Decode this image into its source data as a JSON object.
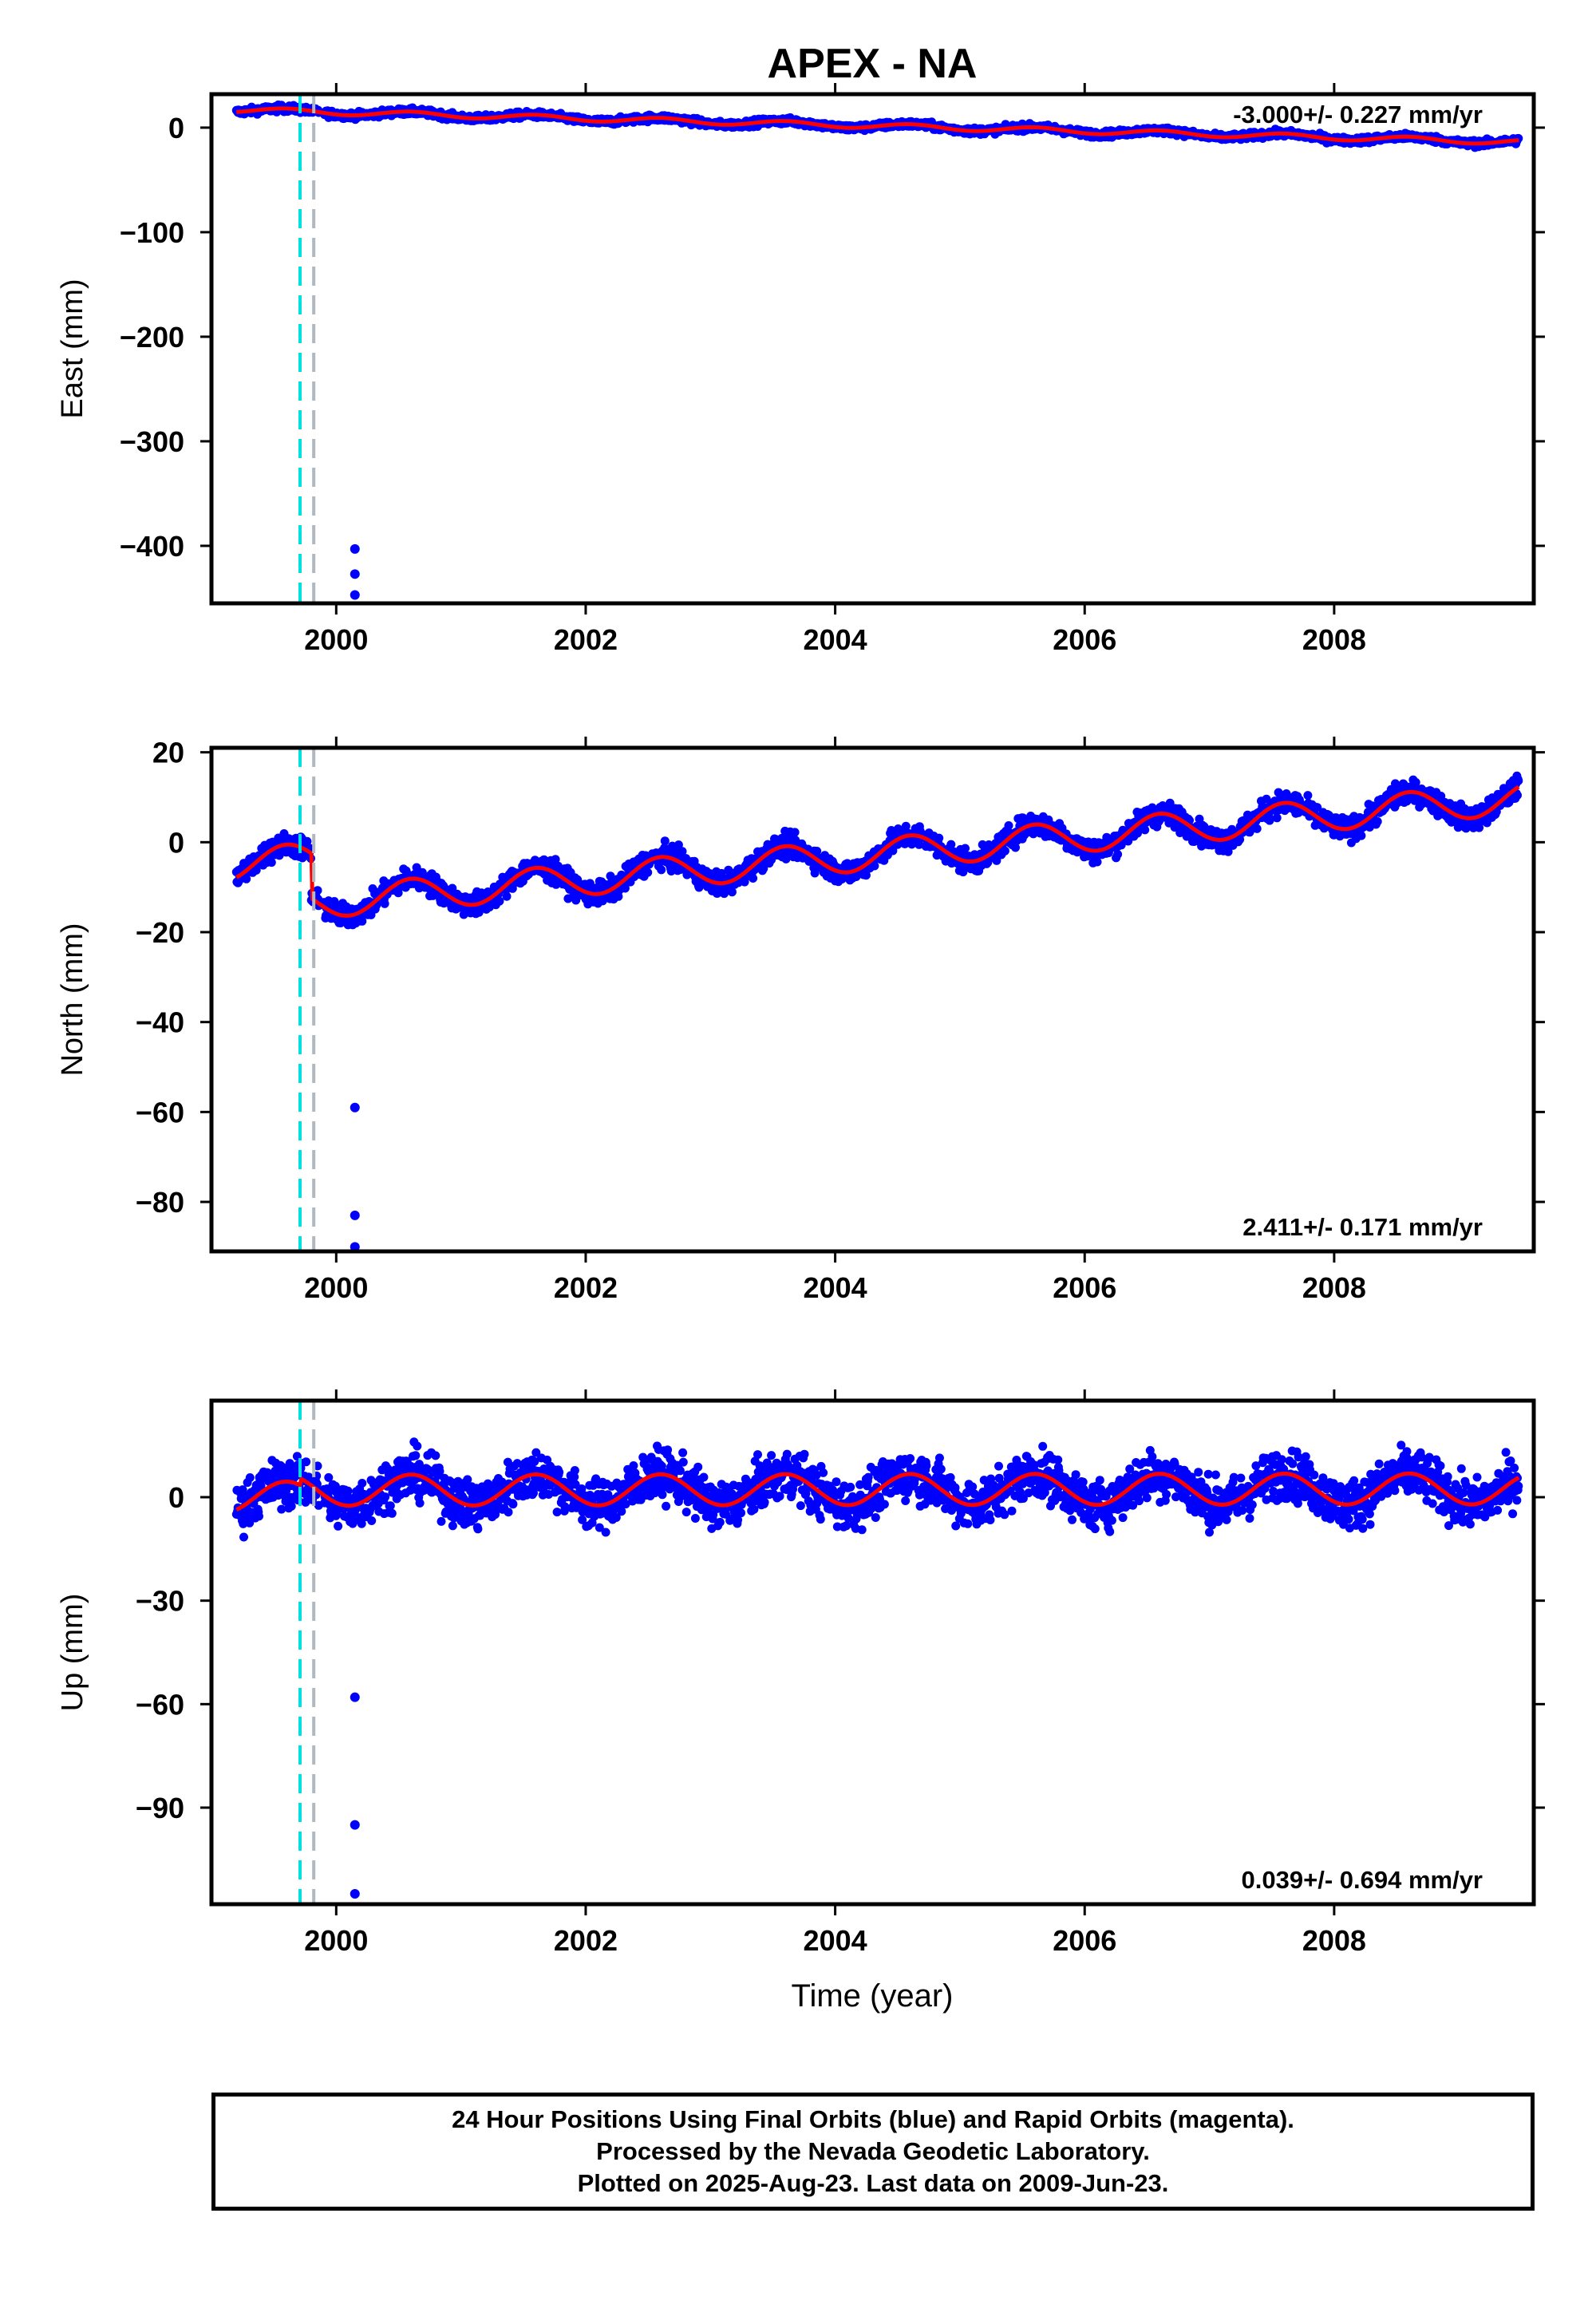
{
  "chart_data": [
    {
      "type": "scatter",
      "panel": "east",
      "title": "APEX - NA",
      "ylabel": "East (mm)",
      "xlabel": "",
      "xlim": [
        1999.0,
        2009.6
      ],
      "ylim": [
        -455,
        32
      ],
      "xticks": [
        2000,
        2002,
        2004,
        2006,
        2008
      ],
      "yticks": [
        0,
        -100,
        -200,
        -300,
        -400
      ],
      "rate_label": "-3.000+/- 0.227 mm/yr",
      "trend": {
        "start": 17,
        "rate": -3.0,
        "amplitude": 2.5,
        "offsets": []
      },
      "scatter_sigma": 2.2,
      "outliers": [
        [
          2000.15,
          -403
        ],
        [
          2000.15,
          -427
        ],
        [
          2000.15,
          -447
        ]
      ],
      "breaks": [
        1999.71,
        1999.82
      ],
      "grid": false,
      "series": [
        {
          "name": "Final Orbits",
          "color": "#0000ff"
        },
        {
          "name": "Model",
          "color": "#ff0000"
        }
      ]
    },
    {
      "type": "scatter",
      "panel": "north",
      "title": "",
      "ylabel": "North (mm)",
      "xlabel": "",
      "xlim": [
        1999.0,
        2009.6
      ],
      "ylim": [
        -91,
        21
      ],
      "xticks": [
        2000,
        2002,
        2004,
        2006,
        2008
      ],
      "yticks": [
        20,
        0,
        -20,
        -40,
        -60,
        -80
      ],
      "rate_label": "2.411+/- 0.171 mm/yr",
      "trend": {
        "start": -5,
        "rate": 2.41,
        "amplitude": 3.5,
        "offsets": [
          [
            1999.8,
            -10
          ]
        ]
      },
      "scatter_sigma": 1.8,
      "outliers": [
        [
          2000.15,
          -59
        ],
        [
          2000.15,
          -83
        ],
        [
          2000.15,
          -90
        ]
      ],
      "breaks": [
        1999.71,
        1999.82
      ],
      "grid": false,
      "series": [
        {
          "name": "Final Orbits",
          "color": "#0000ff"
        },
        {
          "name": "Model",
          "color": "#ff0000"
        }
      ]
    },
    {
      "type": "scatter",
      "panel": "up",
      "title": "",
      "ylabel": "Up (mm)",
      "xlabel": "Time (year)",
      "xlim": [
        1999.0,
        2009.6
      ],
      "ylim": [
        -118,
        28
      ],
      "xticks": [
        2000,
        2002,
        2004,
        2006,
        2008
      ],
      "yticks": [
        0,
        -30,
        -60,
        -90
      ],
      "rate_label": "0.039+/- 0.694 mm/yr",
      "trend": {
        "start": 0,
        "rate": 0.04,
        "amplitude": 4.5,
        "offsets": [
          [
            1999.71,
            2
          ]
        ]
      },
      "scatter_sigma": 5.0,
      "outliers": [
        [
          2000.15,
          -58
        ],
        [
          2000.15,
          -95
        ],
        [
          2000.15,
          -115
        ]
      ],
      "breaks": [
        1999.71,
        1999.82
      ],
      "grid": false,
      "series": [
        {
          "name": "Final Orbits",
          "color": "#0000ff"
        },
        {
          "name": "Model",
          "color": "#ff0000"
        }
      ]
    }
  ],
  "colors": {
    "points": "#0000ff",
    "model": "#ff0000",
    "break_primary": "#00e0e0",
    "break_secondary": "#b0b8c0"
  },
  "footer": {
    "line1": "24 Hour Positions Using Final Orbits (blue) and Rapid Orbits (magenta).",
    "line2": "Processed by the Nevada Geodetic Laboratory.",
    "line3": "Plotted on 2025-Aug-23. Last data on 2009-Jun-23."
  }
}
